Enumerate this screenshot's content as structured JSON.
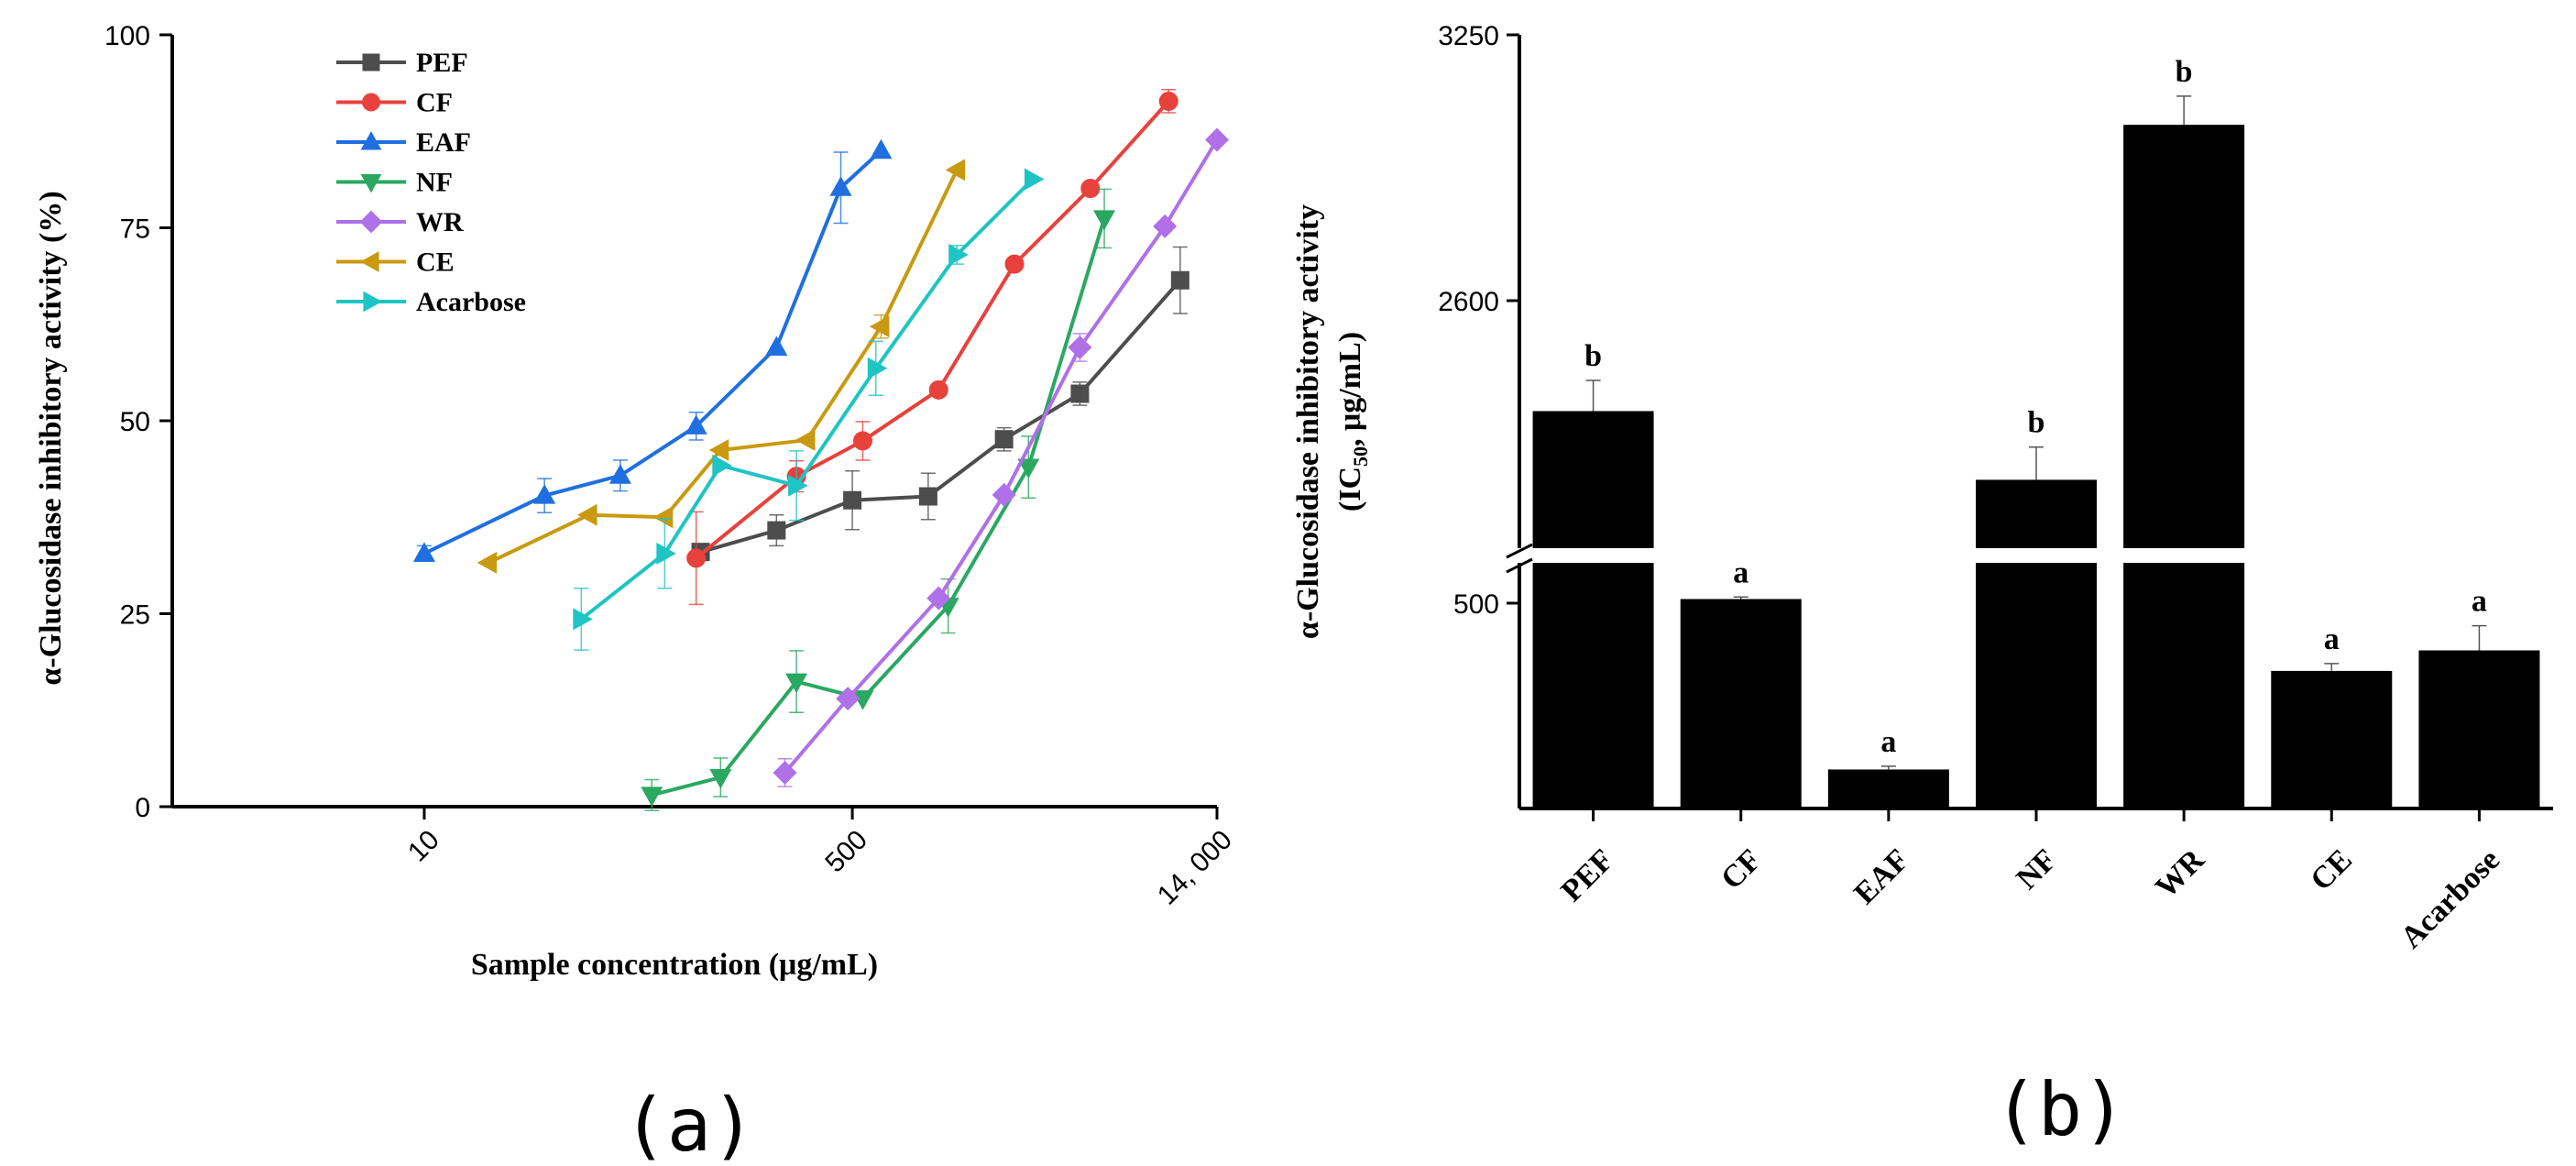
{
  "chart_data": [
    {
      "type": "line",
      "panel_label": "(a)",
      "xlabel": "Sample concentration (μg/mL)",
      "ylabel": "α-Glucosidase inhibitory activity (%)",
      "xscale": "log",
      "xlim": [
        1,
        14000
      ],
      "ylim": [
        0,
        100
      ],
      "xticks": [
        10,
        500,
        14000
      ],
      "xtick_labels": [
        "10",
        "500",
        "14, 000"
      ],
      "yticks": [
        0,
        25,
        50,
        75,
        100
      ],
      "legend_position": "top-left",
      "series": [
        {
          "name": "PEF",
          "color": "#4d4d4d",
          "marker": "square",
          "x": [
            125,
            250,
            500,
            1000,
            2000,
            4000,
            10000
          ],
          "y": [
            33,
            35.8,
            39.7,
            40.2,
            47.6,
            53.5,
            68.2
          ],
          "err": [
            0,
            2,
            3.8,
            3,
            1.5,
            1.5,
            4.3
          ]
        },
        {
          "name": "CF",
          "color": "#e8413c",
          "marker": "circle",
          "x": [
            120,
            300,
            550,
            1100,
            2200,
            4400,
            9000
          ],
          "y": [
            32.2,
            42.8,
            47.4,
            54,
            70.3,
            80.1,
            91.4
          ],
          "err": [
            6,
            2,
            2.5,
            0,
            0,
            0,
            1.5
          ]
        },
        {
          "name": "EAF",
          "color": "#1f6fe0",
          "marker": "triangle-up",
          "x": [
            10,
            30,
            60,
            120,
            250,
            450,
            650
          ],
          "y": [
            32.8,
            40.3,
            42.9,
            49.3,
            59.5,
            80.2,
            85
          ],
          "err": [
            1,
            2.2,
            2,
            1.8,
            0,
            4.6,
            0
          ]
        },
        {
          "name": "NF",
          "color": "#2aa861",
          "marker": "triangle-down",
          "x": [
            80,
            150,
            300,
            550,
            1200,
            2500,
            5000
          ],
          "y": [
            1.5,
            3.8,
            16.2,
            14,
            26,
            44,
            76.2
          ],
          "err": [
            2,
            2.5,
            4,
            0,
            3.5,
            4,
            3.8
          ]
        },
        {
          "name": "WR",
          "color": "#b070e8",
          "marker": "diamond",
          "x": [
            270,
            480,
            1100,
            2000,
            4000,
            8700,
            14000
          ],
          "y": [
            4.4,
            14,
            27,
            40.4,
            59.5,
            75.2,
            86.4
          ],
          "err": [
            1.8,
            0,
            0,
            0,
            1.8,
            0,
            0
          ]
        },
        {
          "name": "CE",
          "color": "#c99a0f",
          "marker": "triangle-left",
          "x": [
            18,
            45,
            90,
            150,
            330,
            650,
            1300
          ],
          "y": [
            31.6,
            37.8,
            37.5,
            46.2,
            47.5,
            62.2,
            82.5
          ],
          "err": [
            0,
            0,
            0,
            0,
            0,
            1.5,
            0
          ]
        },
        {
          "name": "Acarbose",
          "color": "#1fc4c4",
          "marker": "triangle-right",
          "x": [
            42,
            90,
            150,
            300,
            620,
            1300,
            2600
          ],
          "y": [
            24.3,
            32.8,
            44.2,
            41.6,
            56.8,
            71.5,
            81.3
          ],
          "err": [
            4,
            4.5,
            0,
            4.5,
            3.5,
            1.2,
            0
          ]
        }
      ]
    },
    {
      "type": "bar",
      "panel_label": "(b)",
      "ylabel": "α-Glucosidase inhibitory activity",
      "ylabel_line2_prefix": "(IC",
      "ylabel_line2_sub": "50",
      "ylabel_line2_suffix": ", μg/mL)",
      "ylim": [
        0,
        3250
      ],
      "axis_break": "between 500 and 2600",
      "yticks": [
        500,
        2600,
        3250
      ],
      "categories": [
        "PEF",
        "CF",
        "EAF",
        "NF",
        "WR",
        "CE",
        "Acarbose"
      ],
      "values": [
        2330,
        510,
        95,
        2162,
        3030,
        335,
        385
      ],
      "errors": [
        75,
        5,
        8,
        80,
        70,
        18,
        60
      ],
      "significance": [
        "b",
        "a",
        "a",
        "b",
        "b",
        "a",
        "a"
      ],
      "bar_color": "#000000"
    }
  ]
}
